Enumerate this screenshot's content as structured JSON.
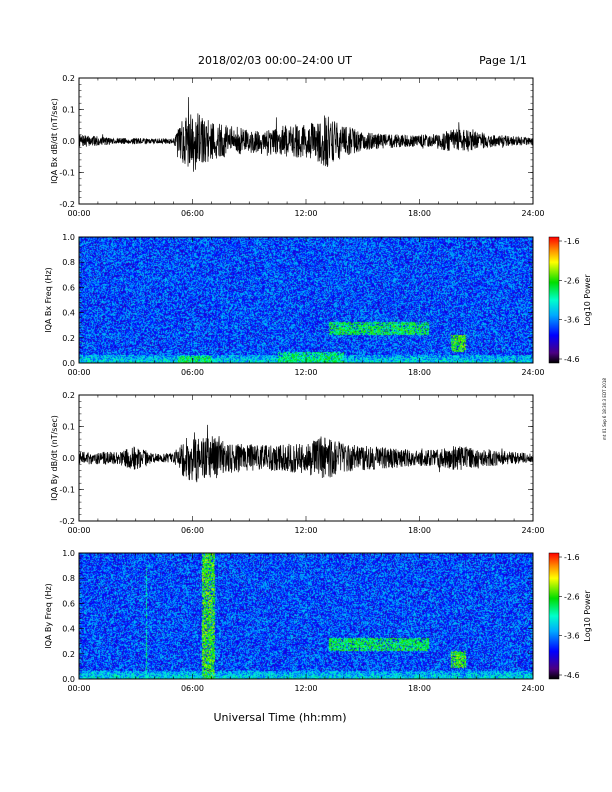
{
  "header": {
    "title": "2018/02/03  00:00–24:00 UT",
    "page": "Page 1/1"
  },
  "side_note": "mt 01 Sep 6 18:30:3 EDT 2018",
  "x_axis_label": "Universal Time (hh:mm)",
  "chart_data": [
    {
      "type": "line",
      "id": "bx_dbdt",
      "ylabel": "IQA Bx dB/dt (nT/sec)",
      "x_range_hours": [
        0,
        24
      ],
      "ylim": [
        -0.2,
        0.2
      ],
      "y_ticks": [
        "0.2",
        "0.1",
        "0.0",
        "-0.1",
        "-0.2"
      ],
      "x_ticks": [
        "00:00",
        "06:00",
        "12:00",
        "18:00",
        "24:00"
      ],
      "envelope": {
        "hours": [
          0,
          1,
          2,
          3,
          4,
          5,
          5.5,
          6,
          6.5,
          7,
          8,
          9,
          10,
          11,
          12,
          12.5,
          13,
          13.5,
          14,
          15,
          16,
          17,
          18,
          19,
          20,
          21,
          22,
          23,
          24
        ],
        "amplitude": [
          0.02,
          0.015,
          0.01,
          0.01,
          0.008,
          0.01,
          0.07,
          0.1,
          0.08,
          0.06,
          0.05,
          0.04,
          0.045,
          0.05,
          0.055,
          0.06,
          0.09,
          0.07,
          0.05,
          0.03,
          0.025,
          0.02,
          0.02,
          0.025,
          0.04,
          0.03,
          0.02,
          0.015,
          0.012
        ]
      }
    },
    {
      "type": "heatmap",
      "id": "bx_freq",
      "ylabel": "IQA Bx Freq (Hz)",
      "x_range_hours": [
        0,
        24
      ],
      "ylim": [
        0,
        1.0
      ],
      "y_ticks": [
        "1.0",
        "0.8",
        "0.6",
        "0.4",
        "0.2",
        "0.0"
      ],
      "x_ticks": [
        "00:00",
        "06:00",
        "12:00",
        "18:00",
        "24:00"
      ],
      "colorbar": {
        "label": "Log10 Power",
        "ticks": [
          "-1.6",
          "-2.6",
          "-3.6",
          "-4.6"
        ],
        "range": [
          -4.6,
          -1.6
        ]
      },
      "features": [
        {
          "hours": [
            13.2,
            18.5
          ],
          "freq": [
            0.22,
            0.32
          ],
          "level": -2.8
        },
        {
          "hours": [
            19.7,
            20.5
          ],
          "freq": [
            0.08,
            0.22
          ],
          "level": -2.6
        },
        {
          "hours": [
            5.2,
            7.0
          ],
          "freq": [
            0.0,
            0.05
          ],
          "level": -2.8
        },
        {
          "hours": [
            10.5,
            14.0
          ],
          "freq": [
            0.0,
            0.08
          ],
          "level": -2.9
        }
      ]
    },
    {
      "type": "line",
      "id": "by_dbdt",
      "ylabel": "IQA By dB/dt (nT/sec)",
      "x_range_hours": [
        0,
        24
      ],
      "ylim": [
        -0.2,
        0.2
      ],
      "y_ticks": [
        "0.2",
        "0.1",
        "0.0",
        "-0.1",
        "-0.2"
      ],
      "x_ticks": [
        "00:00",
        "06:00",
        "12:00",
        "18:00",
        "24:00"
      ],
      "envelope": {
        "hours": [
          0,
          1,
          2,
          3,
          4,
          5,
          5.5,
          6,
          6.5,
          7,
          8,
          9,
          10,
          11,
          12,
          12.5,
          13,
          13.5,
          14,
          15,
          16,
          17,
          18,
          19,
          20,
          21,
          22,
          23,
          24
        ],
        "amplitude": [
          0.02,
          0.02,
          0.02,
          0.04,
          0.015,
          0.015,
          0.06,
          0.09,
          0.07,
          0.07,
          0.05,
          0.045,
          0.04,
          0.045,
          0.05,
          0.06,
          0.08,
          0.06,
          0.045,
          0.04,
          0.035,
          0.03,
          0.025,
          0.03,
          0.04,
          0.03,
          0.025,
          0.02,
          0.015
        ]
      }
    },
    {
      "type": "heatmap",
      "id": "by_freq",
      "ylabel": "IQA By Freq (Hz)",
      "x_range_hours": [
        0,
        24
      ],
      "ylim": [
        0,
        1.0
      ],
      "y_ticks": [
        "1.0",
        "0.8",
        "0.6",
        "0.4",
        "0.2",
        "0.0"
      ],
      "x_ticks": [
        "00:00",
        "06:00",
        "12:00",
        "18:00",
        "24:00"
      ],
      "colorbar": {
        "label": "Log10 Power",
        "ticks": [
          "-1.6",
          "-2.6",
          "-3.6",
          "-4.6"
        ],
        "range": [
          -4.6,
          -1.6
        ]
      },
      "features": [
        {
          "hours": [
            6.5,
            7.2
          ],
          "freq": [
            0.0,
            1.0
          ],
          "level": -2.6
        },
        {
          "hours": [
            13.2,
            18.5
          ],
          "freq": [
            0.22,
            0.32
          ],
          "level": -2.8
        },
        {
          "hours": [
            19.7,
            20.5
          ],
          "freq": [
            0.08,
            0.22
          ],
          "level": -2.6
        },
        {
          "hours": [
            3.5,
            3.6
          ],
          "freq": [
            0.0,
            0.9
          ],
          "level": -3.0
        }
      ]
    }
  ]
}
